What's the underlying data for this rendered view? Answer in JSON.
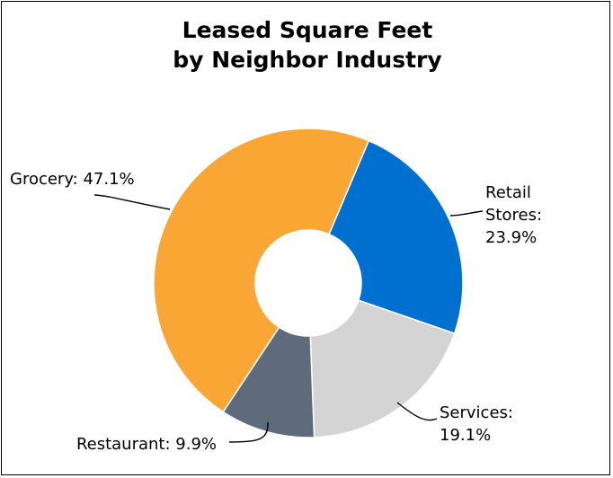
{
  "chart_data": {
    "type": "pie",
    "variant": "donut",
    "title": [
      "Leased Square Feet",
      "by Neighbor Industry"
    ],
    "slices": [
      {
        "name": "Retail Stores",
        "value": 23.9,
        "color": "#0070d0",
        "label_lines": [
          "Retail",
          "Stores:",
          "23.9%"
        ]
      },
      {
        "name": "Services",
        "value": 19.1,
        "color": "#d4d4d4",
        "label_lines": [
          "Services:",
          "19.1%"
        ]
      },
      {
        "name": "Restaurant",
        "value": 9.9,
        "color": "#5f6b7a",
        "label_lines": [
          "Restaurant: 9.9%"
        ]
      },
      {
        "name": "Grocery",
        "value": 47.1,
        "color": "#f9a635",
        "label_lines": [
          "Grocery: 47.1%"
        ]
      }
    ],
    "legend": "none"
  }
}
